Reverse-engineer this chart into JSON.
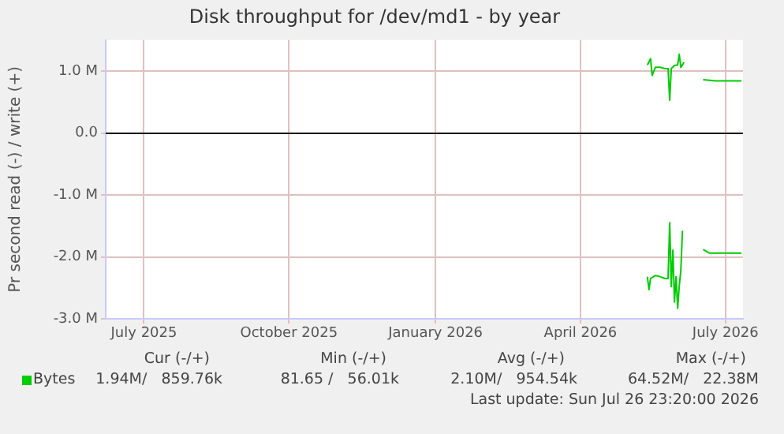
{
  "chart_data": {
    "type": "line",
    "title": "Disk throughput for /dev/md1 - by year",
    "ylabel": "Pr second read (-) / write (+)",
    "xlim": [
      "2025-06-21",
      "2026-07-26"
    ],
    "xticks": [
      {
        "value": "2025-07-15",
        "label": "July 2025"
      },
      {
        "value": "2025-10-14",
        "label": "October 2025"
      },
      {
        "value": "2026-01-14",
        "label": "January 2026"
      },
      {
        "value": "2026-04-15",
        "label": "April 2026"
      },
      {
        "value": "2026-07-15",
        "label": "July 2026"
      }
    ],
    "ylim": [
      -3000000,
      1500000
    ],
    "yticks": [
      {
        "value": -3000000,
        "label": "-3.0 M"
      },
      {
        "value": -2000000,
        "label": "-2.0 M"
      },
      {
        "value": -1000000,
        "label": "-1.0 M"
      },
      {
        "value": 0,
        "label": "0.0"
      },
      {
        "value": 1000000,
        "label": "1.0 M"
      }
    ],
    "grid": true,
    "legend": "bottom left",
    "marker": "none",
    "line_style": "solid",
    "ref_lines": [
      {
        "axis": "y",
        "value": 0,
        "color": "#000000"
      }
    ],
    "series": [
      {
        "name": "Bytes",
        "color": "#00cc00",
        "x": [
          "2026-05-27",
          "2026-05-29",
          "2026-05-30",
          "2026-06-01",
          "2026-06-04",
          "2026-06-07",
          "2026-06-09",
          "2026-06-10",
          "2026-06-11",
          "2026-06-13",
          "2026-06-15",
          "2026-06-16",
          "2026-06-17",
          "2026-06-19",
          "2026-06-25",
          "2026-07-01",
          "2026-07-09",
          "2026-07-17",
          "2026-07-25"
        ],
        "values": [
          1100000,
          1200000,
          930000,
          1060000,
          1060000,
          1040000,
          1040000,
          530000,
          1040000,
          1090000,
          1100000,
          1270000,
          1060000,
          1140000,
          null,
          860000,
          840000,
          840000,
          840000
        ]
      },
      {
        "color": "#00cc00",
        "x": [
          "2026-05-27",
          "2026-05-28",
          "2026-05-29",
          "2026-06-01",
          "2026-06-04",
          "2026-06-07",
          "2026-06-09",
          "2026-06-10",
          "2026-06-11",
          "2026-06-12",
          "2026-06-13",
          "2026-06-14",
          "2026-06-15",
          "2026-06-16",
          "2026-06-17",
          "2026-06-18",
          "2026-06-25",
          "2026-07-01",
          "2026-07-05",
          "2026-07-14",
          "2026-07-25"
        ],
        "values": [
          -2320000,
          -2530000,
          -2350000,
          -2300000,
          -2320000,
          -2350000,
          -2350000,
          -1450000,
          -2480000,
          -1890000,
          -2730000,
          -2320000,
          -2830000,
          -2470000,
          -2220000,
          -1580000,
          null,
          -1880000,
          -1940000,
          -1940000,
          -1940000
        ]
      }
    ],
    "annotations": [
      "Cur (-/+)",
      "Min (-/+)",
      "Avg (-/+)",
      "Max (-/+)",
      "1.94M/   859.76k",
      "81.65 /   56.01k",
      "2.10M/   954.54k",
      "64.52M/   22.38M",
      "Last update: Sun Jul 26 23:20:00 2026"
    ]
  }
}
